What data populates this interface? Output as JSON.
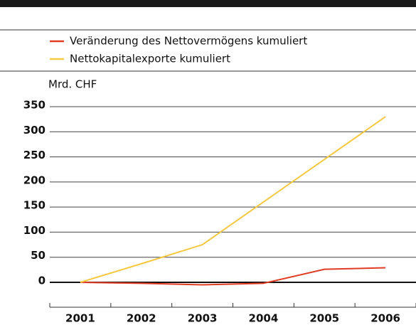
{
  "chart_data": {
    "type": "line",
    "y_axis_label": "Mrd. CHF",
    "categories": [
      "2001",
      "2002",
      "2003",
      "2004",
      "2005",
      "2006"
    ],
    "series": [
      {
        "name": "Veränderung des Nettovermögens kumuliert",
        "color": "#e03c24",
        "values": [
          0,
          -2,
          -5,
          -2,
          26,
          29
        ]
      },
      {
        "name": "Nettokapitalexporte kumuliert",
        "color": "#f5c842",
        "values": [
          0,
          37,
          75,
          160,
          245,
          330
        ]
      }
    ],
    "ylim": [
      0,
      350
    ],
    "yticks": [
      0,
      50,
      100,
      150,
      200,
      250,
      300,
      350
    ],
    "grid": true
  }
}
